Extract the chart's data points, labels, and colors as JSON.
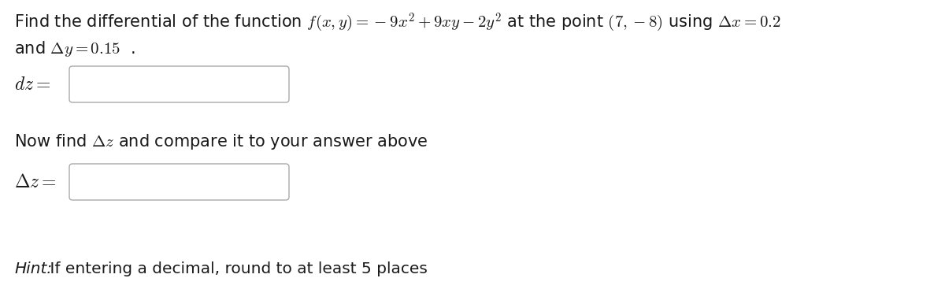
{
  "bg_color": "#ffffff",
  "text_color": "#1a1a1a",
  "line1": "Find the differential of the function $f(x, y) = -9x^2 + 9xy - 2y^2$ at the point $(7, -8)$ using $\\Delta x = 0.2$",
  "line2": "and $\\Delta y = 0.15$  .",
  "dz_label": "$dz =$",
  "delta_z_label": "$\\Delta z =$",
  "now_find_text": "Now find $\\Delta z$ and compare it to your answer above",
  "hint_word": "Hint:",
  "hint_rest": " If entering a decimal, round to at least 5 places",
  "font_size_main": 15.0,
  "font_size_hint": 14.5
}
